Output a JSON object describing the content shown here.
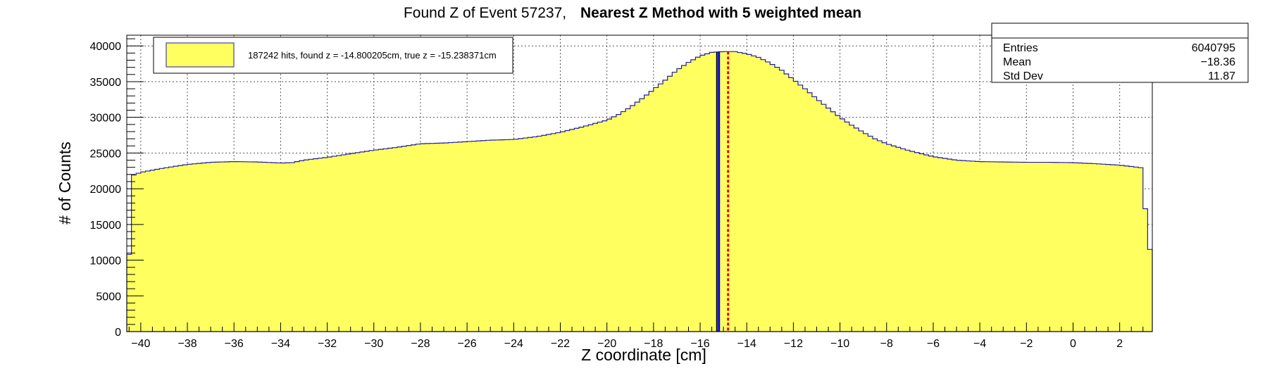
{
  "chart_data": {
    "type": "histogram",
    "title_normal": "Found Z of Event 57237,",
    "title_bold": "Nearest Z Method with 5 weighted mean",
    "xlabel": "Z coordinate [cm]",
    "ylabel": "# of Counts",
    "xlim": [
      -40.6,
      3.4
    ],
    "ylim": [
      0,
      41500
    ],
    "xticks": [
      -40,
      -38,
      -36,
      -34,
      -32,
      -30,
      -28,
      -26,
      -24,
      -22,
      -20,
      -18,
      -16,
      -14,
      -12,
      -10,
      -8,
      -6,
      -4,
      -2,
      0,
      2
    ],
    "xtick_labels": [
      "−40",
      "−38",
      "−36",
      "−34",
      "−32",
      "−30",
      "−28",
      "−26",
      "−24",
      "−22",
      "−20",
      "−18",
      "−16",
      "−14",
      "−12",
      "−10",
      "−8",
      "−6",
      "−4",
      "−2",
      "0",
      "2"
    ],
    "yticks": [
      0,
      5000,
      10000,
      15000,
      20000,
      25000,
      30000,
      35000,
      40000
    ],
    "ytick_labels": [
      "0",
      "5000",
      "10000",
      "15000",
      "20000",
      "25000",
      "30000",
      "35000",
      "40000"
    ],
    "grid": true,
    "bin_width": 0.2,
    "profile_x": [
      -40.6,
      -40.4,
      -40.0,
      -39.0,
      -38.0,
      -37.0,
      -36.0,
      -35.0,
      -34.0,
      -33.5,
      -33.0,
      -32.0,
      -31.0,
      -30.0,
      -29.0,
      -28.0,
      -27.0,
      -26.0,
      -25.0,
      -24.0,
      -23.0,
      -22.0,
      -21.0,
      -20.0,
      -19.5,
      -19.0,
      -18.5,
      -18.0,
      -17.5,
      -17.0,
      -16.5,
      -16.0,
      -15.5,
      -15.0,
      -14.5,
      -14.0,
      -13.5,
      -13.0,
      -12.5,
      -12.0,
      -11.5,
      -11.0,
      -10.5,
      -10.0,
      -9.5,
      -9.0,
      -8.5,
      -8.0,
      -7.5,
      -7.0,
      -6.5,
      -6.0,
      -5.0,
      -4.0,
      -3.0,
      -2.0,
      -1.0,
      0.0,
      1.0,
      2.0,
      2.8,
      3.0,
      3.2
    ],
    "profile_y": [
      10800,
      21800,
      22300,
      22900,
      23400,
      23700,
      23800,
      23750,
      23600,
      23650,
      24000,
      24400,
      24900,
      25400,
      25800,
      26300,
      26400,
      26600,
      26800,
      26900,
      27300,
      27900,
      28700,
      29600,
      30400,
      31400,
      32600,
      33900,
      35200,
      36600,
      37700,
      38600,
      39100,
      39200,
      39200,
      38900,
      38400,
      37600,
      36600,
      35300,
      34000,
      32600,
      31300,
      30000,
      28900,
      27900,
      27000,
      26300,
      25800,
      25300,
      24900,
      24500,
      24000,
      23800,
      23750,
      23700,
      23700,
      23650,
      23500,
      23300,
      23000,
      22900,
      11500
    ],
    "fill_color": "#ffff60",
    "line_color": "#1f1f9f",
    "found_z": -14.800205,
    "true_z": -15.238371,
    "found_line_color": "#dd0000",
    "true_line_color": "#0000dd",
    "legend": {
      "label": "187242 hits, found z = -14.800205cm, true z = -15.238371cm",
      "swatch_color": "#ffff60"
    },
    "stats": {
      "rows": [
        {
          "label": "Entries",
          "value": "6040795"
        },
        {
          "label": "Mean",
          "value": "−18.36"
        },
        {
          "label": "Std Dev",
          "value": "11.87"
        }
      ]
    }
  }
}
